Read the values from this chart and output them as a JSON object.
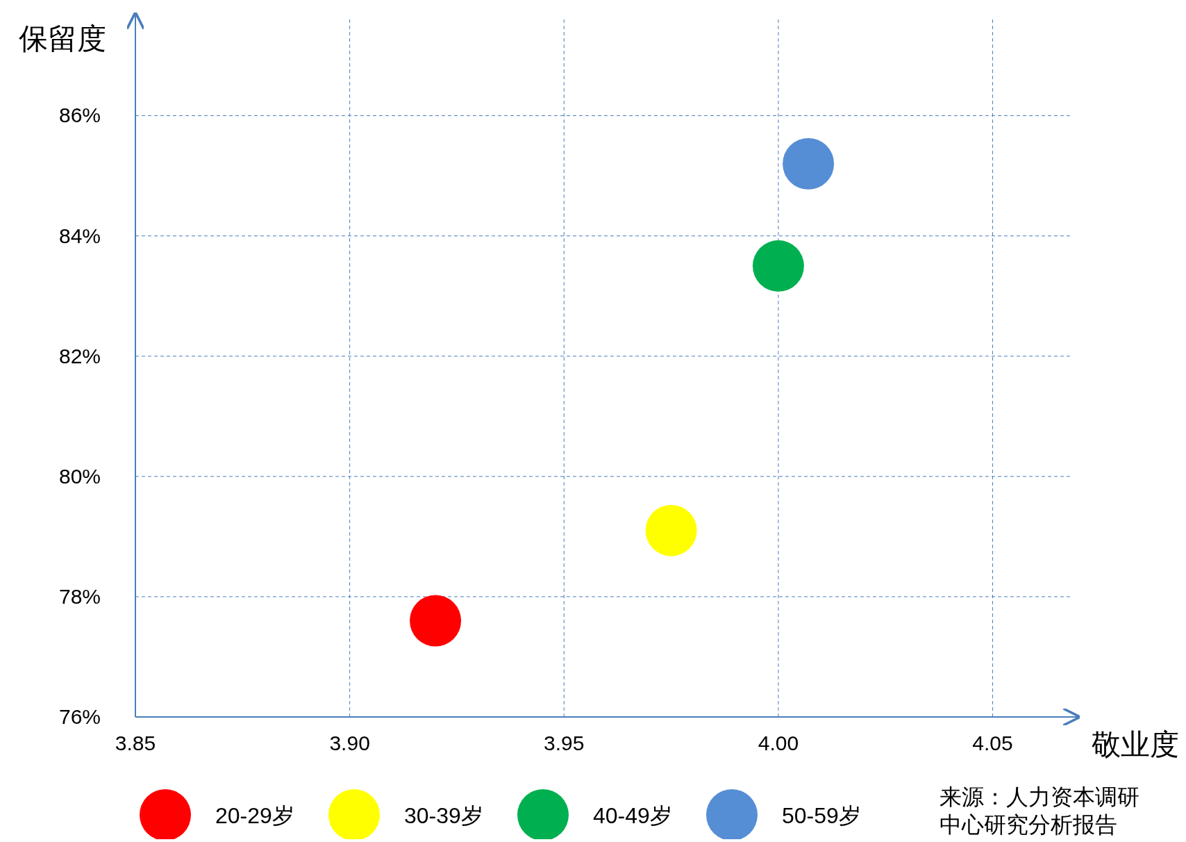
{
  "chart_data": {
    "type": "scatter",
    "xlabel": "敬业度",
    "ylabel": "保留度",
    "xlim": [
      3.85,
      4.07
    ],
    "xticks": [
      {
        "value": 3.85,
        "label": "3.85"
      },
      {
        "value": 3.9,
        "label": "3.90"
      },
      {
        "value": 3.95,
        "label": "3.95"
      },
      {
        "value": 4.0,
        "label": "4.00"
      },
      {
        "value": 4.05,
        "label": "4.05"
      }
    ],
    "ylim": [
      76,
      87.6
    ],
    "yticks": [
      {
        "value": 76,
        "label": "76%"
      },
      {
        "value": 78,
        "label": "78%"
      },
      {
        "value": 80,
        "label": "80%"
      },
      {
        "value": 82,
        "label": "82%"
      },
      {
        "value": 84,
        "label": "84%"
      },
      {
        "value": 86,
        "label": "86%"
      }
    ],
    "series": [
      {
        "name": "20-29岁",
        "color": "#ff0000",
        "x": [
          3.92
        ],
        "values": [
          77.6
        ]
      },
      {
        "name": "30-39岁",
        "color": "#ffff00",
        "x": [
          3.975
        ],
        "values": [
          79.1
        ]
      },
      {
        "name": "40-49岁",
        "color": "#00b050",
        "x": [
          4.0
        ],
        "values": [
          83.5
        ]
      },
      {
        "name": "50-59岁",
        "color": "#558ed5",
        "x": [
          4.007
        ],
        "values": [
          85.2
        ]
      }
    ],
    "marker": "circle",
    "grid": true,
    "legend": "bottom",
    "annotations": [
      "来源：人力资本调研中心研究分析报告"
    ]
  }
}
